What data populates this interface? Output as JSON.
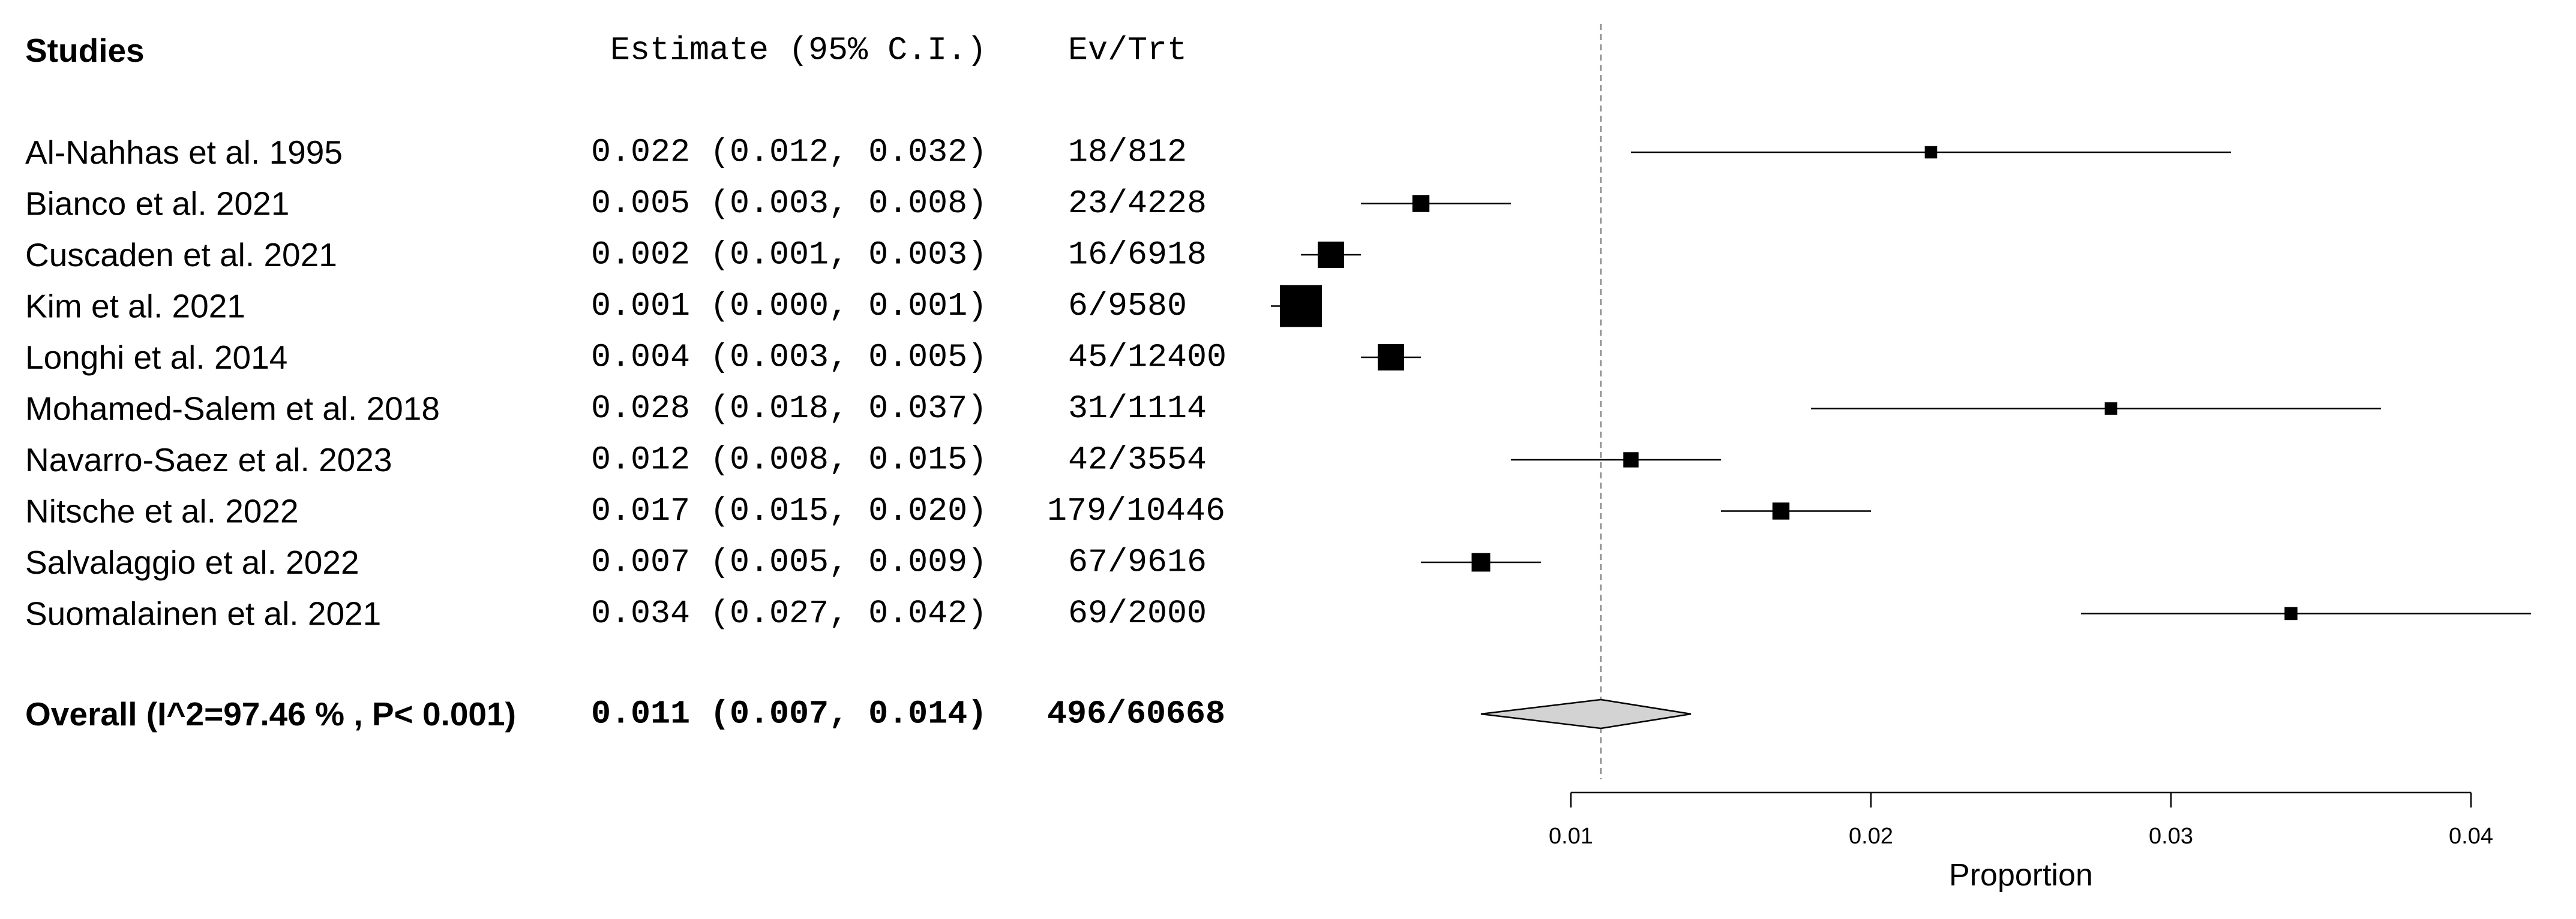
{
  "chart_data": {
    "type": "forest",
    "headers": {
      "studies": "Studies",
      "estimate": "Estimate (95% C.I.)",
      "events": "Ev/Trt"
    },
    "rows": [
      {
        "study": "Al-Nahhas et al. 1995",
        "estimate": 0.022,
        "lower": 0.012,
        "upper": 0.032,
        "estimate_text": "0.022 (0.012, 0.032)",
        "events_text": "18/812"
      },
      {
        "study": "Bianco et al. 2021",
        "estimate": 0.005,
        "lower": 0.003,
        "upper": 0.008,
        "estimate_text": "0.005 (0.003, 0.008)",
        "events_text": "23/4228"
      },
      {
        "study": "Cuscaden et al. 2021",
        "estimate": 0.002,
        "lower": 0.001,
        "upper": 0.003,
        "estimate_text": "0.002 (0.001, 0.003)",
        "events_text": "16/6918"
      },
      {
        "study": "Kim et al. 2021",
        "estimate": 0.001,
        "lower": 0.0,
        "upper": 0.001,
        "estimate_text": "0.001 (0.000, 0.001)",
        "events_text": "6/9580"
      },
      {
        "study": "Longhi et al. 2014",
        "estimate": 0.004,
        "lower": 0.003,
        "upper": 0.005,
        "estimate_text": "0.004 (0.003, 0.005)",
        "events_text": "45/12400"
      },
      {
        "study": "Mohamed-Salem et al. 2018",
        "estimate": 0.028,
        "lower": 0.018,
        "upper": 0.037,
        "estimate_text": "0.028 (0.018, 0.037)",
        "events_text": "31/1114"
      },
      {
        "study": "Navarro-Saez et al. 2023",
        "estimate": 0.012,
        "lower": 0.008,
        "upper": 0.015,
        "estimate_text": "0.012 (0.008, 0.015)",
        "events_text": "42/3554"
      },
      {
        "study": "Nitsche et al. 2022",
        "estimate": 0.017,
        "lower": 0.015,
        "upper": 0.02,
        "estimate_text": "0.017 (0.015, 0.020)",
        "events_text": "179/10446"
      },
      {
        "study": "Salvalaggio et al. 2022",
        "estimate": 0.007,
        "lower": 0.005,
        "upper": 0.009,
        "estimate_text": "0.007 (0.005, 0.009)",
        "events_text": "67/9616"
      },
      {
        "study": "Suomalainen et al. 2021",
        "estimate": 0.034,
        "lower": 0.027,
        "upper": 0.042,
        "estimate_text": "0.034 (0.027, 0.042)",
        "events_text": "69/2000"
      }
    ],
    "overall": {
      "label": "Overall (I^2=97.46 % , P< 0.001)",
      "estimate": 0.011,
      "lower": 0.007,
      "upper": 0.014,
      "estimate_text": "0.011 (0.007, 0.014)",
      "events_text": "496/60668"
    },
    "x_axis": {
      "label": "Proportion",
      "ticks": [
        0.01,
        0.02,
        0.03,
        0.04
      ],
      "tick_labels": [
        "0.01",
        "0.02",
        "0.03",
        "0.04"
      ]
    },
    "reference_line": 0.011,
    "colors": {
      "marker": "#000000",
      "diamond_fill": "#d3d3d3",
      "reference_line": "#888888",
      "text": "#000000"
    }
  }
}
